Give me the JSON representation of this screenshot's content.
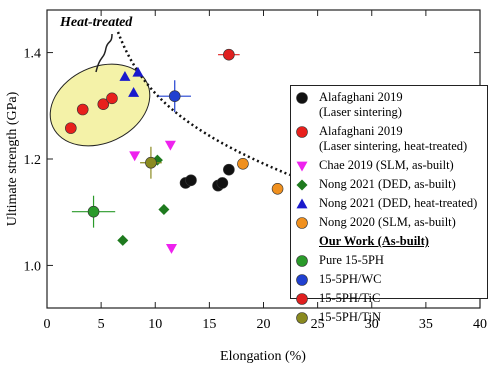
{
  "chart_data": {
    "type": "scatter",
    "xlabel": "Elongation (%)",
    "ylabel": "Ultimate strength (GPa)",
    "annotation": "Heat-treated",
    "legend_subtitle": "Our Work (As-built)",
    "xlim": [
      0,
      40
    ],
    "xticks": [
      0,
      5,
      10,
      15,
      20,
      25,
      30,
      35,
      40
    ],
    "ylim": [
      0.92,
      1.48
    ],
    "yticks": [
      {
        "value": 1.0,
        "label": "1.0"
      },
      {
        "value": 1.2,
        "label": "1.2"
      },
      {
        "value": 1.4,
        "label": "1.4"
      }
    ],
    "legend": "right",
    "series": [
      {
        "name": "Alafaghani 2019\n(Laser sintering)",
        "color": "#111111",
        "marker": "circle",
        "x": [
          12.8,
          13.3,
          15.8,
          16.2,
          16.8
        ],
        "values": [
          1.155,
          1.16,
          1.15,
          1.155,
          1.18
        ]
      },
      {
        "name": "Alafaghani 2019\n(Laser sintering, heat-treated)",
        "color": "#e8201c",
        "marker": "circle",
        "x": [
          2.2,
          3.3,
          5.2,
          6.0
        ],
        "values": [
          1.258,
          1.293,
          1.303,
          1.314
        ]
      },
      {
        "name": "Chae 2019 (SLM, as-built)",
        "color": "#ee22ee",
        "marker": "triangle-down",
        "x": [
          8.1,
          11.4,
          11.5
        ],
        "values": [
          1.206,
          1.226,
          1.032
        ]
      },
      {
        "name": "Nong 2021 (DED, as-built)",
        "color": "#1e7a1e",
        "marker": "diamond",
        "x": [
          10.2,
          10.8,
          7.0
        ],
        "values": [
          1.198,
          1.105,
          1.047
        ]
      },
      {
        "name": "Nong 2021 (DED, heat-treated)",
        "color": "#1a1acc",
        "marker": "triangle",
        "x": [
          7.2,
          8.4,
          8.0
        ],
        "values": [
          1.355,
          1.363,
          1.325
        ]
      },
      {
        "name": "Nong 2020 (SLM, as-built)",
        "color": "#f0901e",
        "marker": "circle",
        "x": [
          18.1,
          21.3
        ],
        "values": [
          1.191,
          1.144
        ]
      },
      {
        "name": "Pure 15-5PH",
        "color": "#2a9a2a",
        "marker": "circle",
        "x": [
          4.3
        ],
        "values": [
          1.101
        ],
        "xerr": [
          2
        ],
        "yerr": [
          0.03
        ]
      },
      {
        "name": "15-5PH/WC",
        "color": "#2040d0",
        "marker": "circle",
        "x": [
          11.8
        ],
        "values": [
          1.318
        ],
        "xerr": [
          1.5
        ],
        "yerr": [
          0.03
        ]
      },
      {
        "name": "15-5PH/TiC",
        "color": "#e02020",
        "marker": "circle",
        "x": [
          16.8
        ],
        "values": [
          1.396
        ],
        "xerr": [
          1
        ],
        "yerr": [
          0.01
        ]
      },
      {
        "name": "15-5PH/TiN",
        "color": "#8a8a20",
        "marker": "circle",
        "x": [
          9.6
        ],
        "values": [
          1.193
        ],
        "xerr": [
          1
        ],
        "yerr": [
          0.03
        ]
      }
    ]
  }
}
